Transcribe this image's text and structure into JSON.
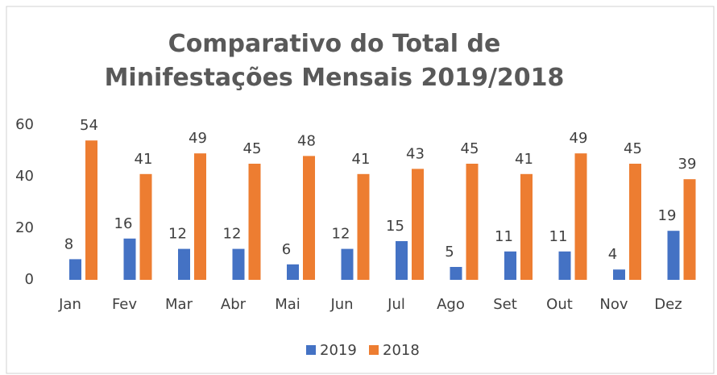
{
  "chart_data": {
    "type": "bar",
    "title": "Comparativo do Total de Minifestações Mensais 2019/2018",
    "categories": [
      "Jan",
      "Fev",
      "Mar",
      "Abr",
      "Mai",
      "Jun",
      "Jul",
      "Ago",
      "Set",
      "Out",
      "Nov",
      "Dez"
    ],
    "series": [
      {
        "name": "2019",
        "color": "#4472c4",
        "values": [
          8,
          16,
          12,
          12,
          6,
          12,
          15,
          5,
          11,
          11,
          4,
          19
        ]
      },
      {
        "name": "2018",
        "color": "#ed7d31",
        "values": [
          54,
          41,
          49,
          45,
          48,
          41,
          43,
          45,
          41,
          49,
          45,
          39
        ]
      }
    ],
    "ylim": [
      0,
      60
    ],
    "yticks": [
      0,
      20,
      40,
      60
    ],
    "grid": false,
    "legend": "bottom"
  }
}
